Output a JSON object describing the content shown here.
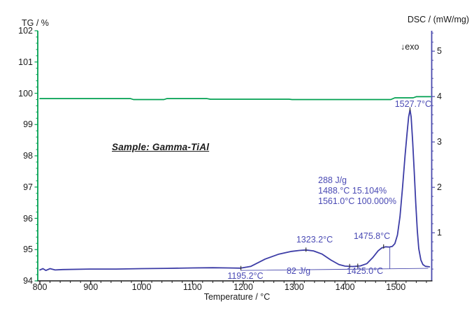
{
  "chart_data": {
    "type": "line",
    "title": "",
    "sample_label": "Sample: Gamma-TiAl",
    "x_axis": {
      "label": "Temperature / °C",
      "min": 800,
      "max": 1570,
      "major_ticks": [
        800,
        900,
        1000,
        1100,
        1200,
        1300,
        1400,
        1500
      ],
      "minor_step": 20,
      "color": "#1a1a1a"
    },
    "left_axis": {
      "label": "TG / %",
      "min": 94,
      "max": 102,
      "major_ticks": [
        94,
        95,
        96,
        97,
        98,
        99,
        100,
        101,
        102
      ],
      "minor_step": 0.2,
      "color": "#00a050"
    },
    "right_axis": {
      "label": "DSC / (mW/mg)",
      "min": -0.06,
      "max": 5.45,
      "major_ticks": [
        1,
        2,
        3,
        4,
        5
      ],
      "minor_step": 0.2,
      "color": "#4a4aad",
      "exo_note": "↓exo"
    },
    "legend": "none",
    "grid": "off",
    "series": [
      {
        "name": "TG",
        "axis": "left",
        "color": "#00a050",
        "width": 1.7,
        "points": [
          [
            800,
            99.83
          ],
          [
            978,
            99.83
          ],
          [
            984,
            99.8
          ],
          [
            1044,
            99.8
          ],
          [
            1050,
            99.83
          ],
          [
            1128,
            99.83
          ],
          [
            1135,
            99.81
          ],
          [
            1290,
            99.81
          ],
          [
            1296,
            99.8
          ],
          [
            1490,
            99.8
          ],
          [
            1498,
            99.855
          ],
          [
            1534,
            99.855
          ],
          [
            1540,
            99.89
          ],
          [
            1568,
            99.89
          ]
        ]
      },
      {
        "name": "DSC",
        "axis": "right",
        "color": "#3c3ca6",
        "width": 1.8,
        "points": [
          [
            800,
            0.18
          ],
          [
            806,
            0.21
          ],
          [
            812,
            0.17
          ],
          [
            820,
            0.21
          ],
          [
            830,
            0.18
          ],
          [
            845,
            0.19
          ],
          [
            900,
            0.2
          ],
          [
            950,
            0.2
          ],
          [
            1000,
            0.21
          ],
          [
            1050,
            0.215
          ],
          [
            1100,
            0.225
          ],
          [
            1140,
            0.23
          ],
          [
            1170,
            0.225
          ],
          [
            1195,
            0.22
          ],
          [
            1215,
            0.26
          ],
          [
            1243,
            0.42
          ],
          [
            1270,
            0.53
          ],
          [
            1295,
            0.59
          ],
          [
            1310,
            0.61
          ],
          [
            1323,
            0.62
          ],
          [
            1338,
            0.6
          ],
          [
            1355,
            0.53
          ],
          [
            1372,
            0.4
          ],
          [
            1388,
            0.3
          ],
          [
            1400,
            0.265
          ],
          [
            1415,
            0.255
          ],
          [
            1430,
            0.27
          ],
          [
            1443,
            0.32
          ],
          [
            1455,
            0.46
          ],
          [
            1465,
            0.6
          ],
          [
            1472,
            0.665
          ],
          [
            1480,
            0.69
          ],
          [
            1487,
            0.685
          ],
          [
            1493,
            0.7
          ],
          [
            1498,
            0.76
          ],
          [
            1503,
            0.95
          ],
          [
            1508,
            1.35
          ],
          [
            1513,
            2.0
          ],
          [
            1518,
            2.7
          ],
          [
            1522,
            3.2
          ],
          [
            1525,
            3.55
          ],
          [
            1527.7,
            3.71
          ],
          [
            1530,
            3.55
          ],
          [
            1533,
            3.0
          ],
          [
            1536,
            2.35
          ],
          [
            1539,
            1.65
          ],
          [
            1542,
            1.05
          ],
          [
            1545,
            0.65
          ],
          [
            1549,
            0.4
          ],
          [
            1553,
            0.3
          ],
          [
            1558,
            0.26
          ],
          [
            1566,
            0.25
          ]
        ]
      },
      {
        "name": "DSC integration baseline",
        "axis": "right",
        "color": "#4a4aad",
        "width": 0.9,
        "points": [
          [
            1195.2,
            0.17
          ],
          [
            1563,
            0.215
          ]
        ]
      },
      {
        "name": "partial-area marker at 1488 °C",
        "axis": "right",
        "color": "#4a4aad",
        "width": 0.9,
        "points": [
          [
            1488,
            0.21
          ],
          [
            1488,
            0.685
          ]
        ]
      }
    ],
    "curve_marks": [
      {
        "t": 1195.2,
        "v": 0.215
      },
      {
        "t": 1323.2,
        "v": 0.62
      },
      {
        "t": 1409,
        "v": 0.26
      },
      {
        "t": 1425,
        "v": 0.265
      },
      {
        "t": 1475.8,
        "v": 0.69
      },
      {
        "t": 1527.7,
        "v": 3.71
      }
    ],
    "annotations": [
      {
        "id": "exo",
        "text": "↓exo",
        "color": "#1a1a1a"
      },
      {
        "id": "peak-main",
        "text": "1527.7°C",
        "color": "#4a4ab4"
      },
      {
        "id": "area-288",
        "text": "288 J/g",
        "color": "#4a4ab4"
      },
      {
        "id": "partial-1488",
        "text": "1488.°C 15.104%",
        "color": "#4a4ab4"
      },
      {
        "id": "total-1561",
        "text": "1561.0°C 100.000%",
        "color": "#4a4ab4"
      },
      {
        "id": "peak-1323",
        "text": "1323.2°C",
        "color": "#4a4ab4"
      },
      {
        "id": "peak-1475",
        "text": "1475.8°C",
        "color": "#4a4ab4"
      },
      {
        "id": "area-82",
        "text": "82 J/g",
        "color": "#4a4ab4"
      },
      {
        "id": "temp-1425",
        "text": "1425.0°C",
        "color": "#4a4ab4"
      },
      {
        "id": "temp-1195",
        "text": "1195.2°C",
        "color": "#4a4ab4"
      }
    ]
  }
}
